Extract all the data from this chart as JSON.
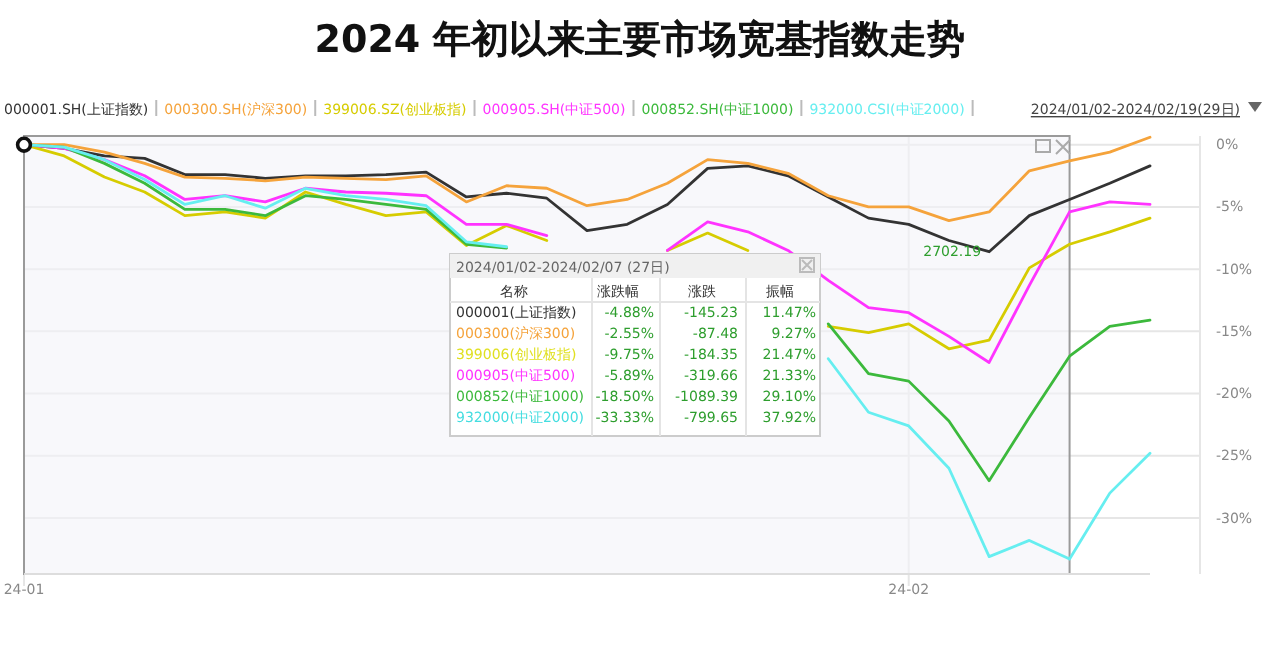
{
  "chart_data": [
    {
      "type": "line",
      "title": "2024 年初以来主要市场宽基指数走势",
      "categories": [
        "24-01",
        null,
        null,
        null,
        null,
        null,
        null,
        null,
        null,
        null,
        null,
        null,
        null,
        null,
        null,
        null,
        null,
        null,
        null,
        null,
        null,
        null,
        "24-02",
        null,
        null,
        null,
        null,
        null,
        null
      ],
      "series": [
        {
          "name": "000001.SH(上证指数)",
          "color": "#333333",
          "values": [
            0,
            -0.3,
            -0.9,
            -1.1,
            -2.4,
            -2.4,
            -2.7,
            -2.5,
            -2.5,
            -2.4,
            -2.2,
            -4.2,
            -3.9,
            -4.3,
            -6.9,
            -6.4,
            -4.8,
            -1.9,
            -1.7,
            -2.5,
            -4.2,
            -5.9,
            -6.4,
            -7.7,
            -8.6,
            -5.7,
            -4.4,
            -3.1,
            -1.7
          ]
        },
        {
          "name": "000300.SH(沪深300)",
          "color": "#f5a33b",
          "values": [
            0,
            0,
            -0.6,
            -1.5,
            -2.6,
            -2.7,
            -2.9,
            -2.6,
            -2.7,
            -2.8,
            -2.5,
            -4.6,
            -3.3,
            -3.5,
            -4.9,
            -4.4,
            -3.1,
            -1.2,
            -1.5,
            -2.3,
            -4.1,
            -5.0,
            -5.0,
            -6.1,
            -5.4,
            -2.1,
            -1.3,
            -0.6,
            0.6
          ]
        },
        {
          "name": "399006.SZ(创业板指)",
          "color": "#d6cc00",
          "values": [
            0,
            -0.9,
            -2.6,
            -3.8,
            -5.7,
            -5.4,
            -5.9,
            -3.8,
            -4.8,
            -5.7,
            -5.4,
            -8.1,
            -6.5,
            -7.7,
            null,
            null,
            -8.5,
            -7.1,
            -8.5,
            null,
            -14.6,
            -15.1,
            -14.4,
            -16.4,
            -15.7,
            -9.9,
            -8.0,
            -7.0,
            -5.9
          ]
        },
        {
          "name": "000905.SH(中证500)",
          "color": "#ff33ff",
          "values": [
            0,
            -0.3,
            -1.2,
            -2.5,
            -4.4,
            -4.1,
            -4.6,
            -3.5,
            -3.8,
            -3.9,
            -4.1,
            -6.4,
            -6.4,
            -7.3,
            null,
            null,
            -8.5,
            -6.2,
            -7.0,
            -8.5,
            -10.9,
            -13.1,
            -13.5,
            -15.4,
            -17.5,
            -11.3,
            -5.4,
            -4.6,
            -4.8
          ]
        },
        {
          "name": "000852.SH(中证1000)",
          "color": "#3cb93c",
          "values": [
            0,
            -0.2,
            -1.5,
            -3.1,
            -5.2,
            -5.2,
            -5.7,
            -4.1,
            -4.4,
            -4.8,
            -5.2,
            -8.0,
            -8.3,
            null,
            null,
            null,
            null,
            null,
            null,
            null,
            -14.4,
            -18.4,
            -19.0,
            -22.2,
            -27.0,
            -21.9,
            -17.0,
            -14.6,
            -14.1
          ]
        },
        {
          "name": "932000.CSI(中证2000)",
          "color": "#66eef0",
          "values": [
            0,
            -0.2,
            -1.2,
            -2.8,
            -4.8,
            -4.1,
            -5.1,
            -3.5,
            -4.1,
            -4.4,
            -4.9,
            -7.8,
            -8.2,
            null,
            null,
            null,
            null,
            null,
            null,
            null,
            -17.2,
            -21.5,
            -22.6,
            -26.0,
            -33.1,
            -31.8,
            -33.3,
            -28.0,
            -24.8
          ]
        }
      ],
      "ylim": [
        -34.5,
        0.7
      ],
      "yticks": [
        {
          "value": 0,
          "label": "0%"
        },
        {
          "value": -5,
          "label": "-5%"
        },
        {
          "value": -10,
          "label": "-10%"
        },
        {
          "value": -15,
          "label": "-15%"
        },
        {
          "value": -20,
          "label": "-20%"
        },
        {
          "value": -25,
          "label": "-25%"
        },
        {
          "value": -30,
          "label": "-30%"
        }
      ],
      "grid": true,
      "legend": "top",
      "annotations": [
        "2024/01/02-2024/02/19(29日)",
        {
          "text": "2702.19",
          "y": -8.6
        }
      ]
    },
    {
      "type": "other",
      "title": "2024/01/02-2024/02/07 (27日)",
      "xlabel": "名称",
      "categories": [
        "000001(上证指数)",
        "000300(沪深300)",
        "399006(创业板指)",
        "000905(中证500)",
        "000852(中证1000)",
        "932000(中证2000)"
      ],
      "colors": [
        "#333333",
        "#f5a33b",
        "#e0e020",
        "#ff33ff",
        "#3cb93c",
        "#44dde0"
      ],
      "series": [
        {
          "name": "涨跌幅",
          "values": [
            -4.88,
            -2.55,
            -9.75,
            -5.89,
            -18.5,
            -33.33
          ],
          "value_labels": [
            "-4.88%",
            "-2.55%",
            "-9.75%",
            "-5.89%",
            "-18.50%",
            "-33.33%"
          ]
        },
        {
          "name": "涨跌",
          "values": [
            -145.23,
            -87.48,
            -184.35,
            -319.66,
            -1089.39,
            -799.65
          ],
          "value_labels": [
            "-145.23",
            "-87.48",
            "-184.35",
            "-319.66",
            "-1089.39",
            "-799.65"
          ]
        },
        {
          "name": "振幅",
          "values": [
            11.47,
            9.27,
            21.47,
            21.33,
            29.1,
            37.92
          ],
          "value_labels": [
            "11.47%",
            "9.27%",
            "21.47%",
            "21.33%",
            "29.10%",
            "37.92%"
          ]
        }
      ]
    }
  ]
}
